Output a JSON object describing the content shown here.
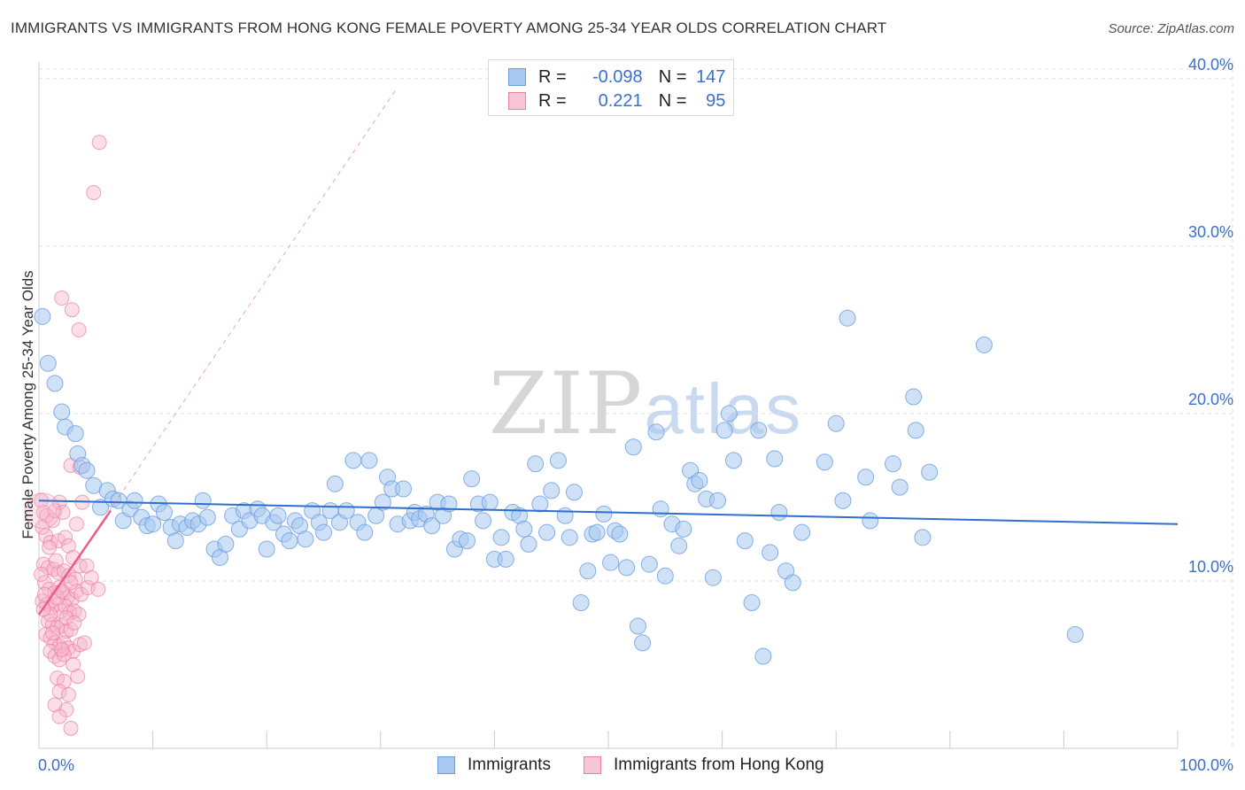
{
  "title": "IMMIGRANTS VS IMMIGRANTS FROM HONG KONG FEMALE POVERTY AMONG 25-34 YEAR OLDS CORRELATION CHART",
  "source": "Source: ZipAtlas.com",
  "watermark": {
    "zip": "ZIP",
    "atlas": "atlas"
  },
  "legend_top": [
    {
      "r_label": "R =",
      "r_value": "-0.098",
      "n_label": "N =",
      "n_value": "147"
    },
    {
      "r_label": "R =",
      "r_value": "0.221",
      "n_label": "N =",
      "n_value": "95"
    }
  ],
  "colors": {
    "blue_fill": "#a8c8f0",
    "blue_stroke": "#6a9ee0",
    "blue_line": "#2e6fd0",
    "pink_fill": "#f7b6cb",
    "pink_stroke": "#ec7fa2",
    "pink_line": "#e8608a",
    "axis_text": "#3a6fd0",
    "grid": "#e0e0e0"
  },
  "chart_data": {
    "type": "scatter",
    "title": "IMMIGRANTS VS IMMIGRANTS FROM HONG KONG FEMALE POVERTY AMONG 25-34 YEAR OLDS CORRELATION CHART",
    "xlabel": "",
    "ylabel": "Female Poverty Among 25-34 Year Olds",
    "xlim": [
      0,
      100
    ],
    "ylim": [
      0,
      41
    ],
    "x_tick_labels": [
      "0.0%",
      "100.0%"
    ],
    "y_ticks": [
      10,
      20,
      30,
      40
    ],
    "y_tick_labels": [
      "10.0%",
      "20.0%",
      "30.0%",
      "40.0%"
    ],
    "grid": true,
    "legend_position": "bottom",
    "series": [
      {
        "name": "Immigrants",
        "r": -0.098,
        "n": 147,
        "trend": {
          "x0": 0,
          "y0": 14.8,
          "x1": 100,
          "y1": 13.4
        },
        "points": [
          [
            0.3,
            25.8
          ],
          [
            0.8,
            23.0
          ],
          [
            1.4,
            21.8
          ],
          [
            2.0,
            20.1
          ],
          [
            2.3,
            19.2
          ],
          [
            3.2,
            18.8
          ],
          [
            3.4,
            17.6
          ],
          [
            3.8,
            16.9
          ],
          [
            4.2,
            16.6
          ],
          [
            4.8,
            15.7
          ],
          [
            5.4,
            14.4
          ],
          [
            6.0,
            15.4
          ],
          [
            6.5,
            14.9
          ],
          [
            7.0,
            14.8
          ],
          [
            7.4,
            13.6
          ],
          [
            8.0,
            14.3
          ],
          [
            8.4,
            14.8
          ],
          [
            9.0,
            13.8
          ],
          [
            9.5,
            13.3
          ],
          [
            10.0,
            13.4
          ],
          [
            10.5,
            14.6
          ],
          [
            11.0,
            14.1
          ],
          [
            11.6,
            13.2
          ],
          [
            12.0,
            12.4
          ],
          [
            12.4,
            13.4
          ],
          [
            13.0,
            13.2
          ],
          [
            13.5,
            13.6
          ],
          [
            14.0,
            13.4
          ],
          [
            14.4,
            14.8
          ],
          [
            14.8,
            13.8
          ],
          [
            15.4,
            11.9
          ],
          [
            15.9,
            11.4
          ],
          [
            16.4,
            12.2
          ],
          [
            17.0,
            13.9
          ],
          [
            17.6,
            13.1
          ],
          [
            18.0,
            14.2
          ],
          [
            18.5,
            13.6
          ],
          [
            19.2,
            14.3
          ],
          [
            19.6,
            13.9
          ],
          [
            20.0,
            11.9
          ],
          [
            20.6,
            13.5
          ],
          [
            21.0,
            13.9
          ],
          [
            21.5,
            12.8
          ],
          [
            22.0,
            12.4
          ],
          [
            22.5,
            13.6
          ],
          [
            22.9,
            13.3
          ],
          [
            23.4,
            12.5
          ],
          [
            24.0,
            14.2
          ],
          [
            24.6,
            13.5
          ],
          [
            25.0,
            12.9
          ],
          [
            25.6,
            14.2
          ],
          [
            26.0,
            15.8
          ],
          [
            26.4,
            13.5
          ],
          [
            27.0,
            14.2
          ],
          [
            27.6,
            17.2
          ],
          [
            28.0,
            13.5
          ],
          [
            28.6,
            12.9
          ],
          [
            29.0,
            17.2
          ],
          [
            29.6,
            13.9
          ],
          [
            30.2,
            14.7
          ],
          [
            30.6,
            16.2
          ],
          [
            31.0,
            15.5
          ],
          [
            31.5,
            13.4
          ],
          [
            32.0,
            15.5
          ],
          [
            32.6,
            13.6
          ],
          [
            33.0,
            14.1
          ],
          [
            33.4,
            13.7
          ],
          [
            34.0,
            14.0
          ],
          [
            34.5,
            13.3
          ],
          [
            35.0,
            14.7
          ],
          [
            35.5,
            13.9
          ],
          [
            36.0,
            14.6
          ],
          [
            36.5,
            11.9
          ],
          [
            37.0,
            12.5
          ],
          [
            37.6,
            12.4
          ],
          [
            38.0,
            16.1
          ],
          [
            38.6,
            14.6
          ],
          [
            39.0,
            13.6
          ],
          [
            39.6,
            14.7
          ],
          [
            40.0,
            11.3
          ],
          [
            40.6,
            12.6
          ],
          [
            41.0,
            11.3
          ],
          [
            41.6,
            14.1
          ],
          [
            42.2,
            13.9
          ],
          [
            42.6,
            13.1
          ],
          [
            43.0,
            12.2
          ],
          [
            43.6,
            17.0
          ],
          [
            44.0,
            14.6
          ],
          [
            44.6,
            12.9
          ],
          [
            45.0,
            15.4
          ],
          [
            45.6,
            17.2
          ],
          [
            46.2,
            13.9
          ],
          [
            46.6,
            12.6
          ],
          [
            47.0,
            15.3
          ],
          [
            47.6,
            8.7
          ],
          [
            48.2,
            10.6
          ],
          [
            48.6,
            12.8
          ],
          [
            49.0,
            12.9
          ],
          [
            49.6,
            14.0
          ],
          [
            50.2,
            11.1
          ],
          [
            50.6,
            13.0
          ],
          [
            51.0,
            12.8
          ],
          [
            51.6,
            10.8
          ],
          [
            52.2,
            18.0
          ],
          [
            52.6,
            7.3
          ],
          [
            53.0,
            6.3
          ],
          [
            53.6,
            11.0
          ],
          [
            54.2,
            18.9
          ],
          [
            54.6,
            14.3
          ],
          [
            55.0,
            10.3
          ],
          [
            55.6,
            13.4
          ],
          [
            56.2,
            12.1
          ],
          [
            56.6,
            13.1
          ],
          [
            57.2,
            16.6
          ],
          [
            57.6,
            15.8
          ],
          [
            58.0,
            16.0
          ],
          [
            58.6,
            14.9
          ],
          [
            59.2,
            10.2
          ],
          [
            59.6,
            14.8
          ],
          [
            60.2,
            19.0
          ],
          [
            60.6,
            20.0
          ],
          [
            61.0,
            17.2
          ],
          [
            62.0,
            12.4
          ],
          [
            62.6,
            8.7
          ],
          [
            63.2,
            19.0
          ],
          [
            63.6,
            5.5
          ],
          [
            64.2,
            11.7
          ],
          [
            64.6,
            17.3
          ],
          [
            65.0,
            14.1
          ],
          [
            65.6,
            10.6
          ],
          [
            66.2,
            9.9
          ],
          [
            67.0,
            12.9
          ],
          [
            69.0,
            17.1
          ],
          [
            70.0,
            19.4
          ],
          [
            70.6,
            14.8
          ],
          [
            71.0,
            25.7
          ],
          [
            72.6,
            16.2
          ],
          [
            73.0,
            13.6
          ],
          [
            75.0,
            17.0
          ],
          [
            75.6,
            15.6
          ],
          [
            76.8,
            21.0
          ],
          [
            77.0,
            19.0
          ],
          [
            77.6,
            12.6
          ],
          [
            78.2,
            16.5
          ],
          [
            83.0,
            24.1
          ],
          [
            91.0,
            6.8
          ]
        ]
      },
      {
        "name": "Immigrants from Hong Kong",
        "r": 0.221,
        "n": 95,
        "trend": {
          "x0": 0,
          "y0": 8.0,
          "x1": 6.3,
          "y1": 14.2
        },
        "trend_ext": {
          "x0": 0,
          "y0": 8.0,
          "x1": 31.5,
          "y1": 39.5
        },
        "points": [
          [
            5.3,
            36.2
          ],
          [
            4.8,
            33.2
          ],
          [
            2.0,
            26.9
          ],
          [
            2.9,
            26.2
          ],
          [
            3.5,
            25.0
          ],
          [
            2.8,
            16.9
          ],
          [
            3.6,
            16.8
          ],
          [
            0.2,
            14.8
          ],
          [
            0.4,
            14.1
          ],
          [
            0.7,
            13.9
          ],
          [
            1.2,
            13.6
          ],
          [
            1.4,
            14.2
          ],
          [
            1.8,
            14.7
          ],
          [
            0.3,
            13.2
          ],
          [
            0.6,
            12.7
          ],
          [
            1.0,
            12.3
          ],
          [
            1.7,
            12.4
          ],
          [
            2.3,
            12.6
          ],
          [
            2.6,
            12.1
          ],
          [
            3.0,
            11.4
          ],
          [
            0.4,
            11.0
          ],
          [
            0.8,
            10.8
          ],
          [
            1.3,
            10.7
          ],
          [
            1.7,
            10.5
          ],
          [
            2.2,
            10.6
          ],
          [
            2.6,
            10.3
          ],
          [
            3.2,
            10.1
          ],
          [
            3.6,
            10.9
          ],
          [
            4.2,
            10.9
          ],
          [
            0.5,
            9.9
          ],
          [
            0.9,
            9.5
          ],
          [
            1.4,
            9.3
          ],
          [
            1.8,
            9.6
          ],
          [
            2.2,
            9.3
          ],
          [
            2.5,
            9.0
          ],
          [
            2.9,
            8.9
          ],
          [
            3.3,
            9.4
          ],
          [
            3.7,
            9.2
          ],
          [
            4.3,
            9.6
          ],
          [
            5.2,
            9.5
          ],
          [
            0.3,
            8.8
          ],
          [
            0.7,
            8.6
          ],
          [
            1.1,
            8.4
          ],
          [
            1.5,
            8.6
          ],
          [
            1.9,
            8.2
          ],
          [
            2.3,
            8.5
          ],
          [
            2.7,
            8.1
          ],
          [
            3.1,
            8.2
          ],
          [
            3.5,
            8.0
          ],
          [
            0.8,
            7.6
          ],
          [
            1.2,
            7.4
          ],
          [
            1.6,
            7.2
          ],
          [
            2.0,
            7.3
          ],
          [
            2.4,
            7.0
          ],
          [
            2.8,
            7.1
          ],
          [
            0.6,
            6.8
          ],
          [
            1.0,
            6.6
          ],
          [
            1.4,
            6.3
          ],
          [
            1.8,
            6.1
          ],
          [
            2.2,
            6.3
          ],
          [
            2.6,
            6.0
          ],
          [
            3.0,
            5.8
          ],
          [
            3.6,
            6.2
          ],
          [
            4.0,
            6.3
          ],
          [
            1.0,
            5.8
          ],
          [
            1.4,
            5.5
          ],
          [
            1.8,
            5.3
          ],
          [
            2.2,
            5.6
          ],
          [
            3.0,
            5.0
          ],
          [
            1.6,
            4.2
          ],
          [
            2.2,
            4.0
          ],
          [
            3.4,
            4.3
          ],
          [
            1.8,
            3.4
          ],
          [
            2.6,
            3.2
          ],
          [
            1.4,
            2.6
          ],
          [
            2.4,
            2.3
          ],
          [
            1.8,
            1.9
          ],
          [
            2.8,
            1.2
          ],
          [
            0.5,
            9.2
          ],
          [
            1.0,
            8.0
          ],
          [
            1.6,
            9.0
          ],
          [
            2.0,
            9.4
          ],
          [
            2.4,
            7.8
          ],
          [
            2.8,
            9.9
          ],
          [
            0.2,
            10.4
          ],
          [
            0.9,
            12.0
          ],
          [
            1.5,
            11.2
          ],
          [
            3.3,
            13.4
          ],
          [
            3.8,
            14.7
          ],
          [
            2.1,
            14.1
          ],
          [
            4.6,
            10.2
          ],
          [
            1.2,
            6.9
          ],
          [
            0.4,
            8.3
          ],
          [
            2.0,
            5.9
          ],
          [
            3.1,
            7.5
          ]
        ]
      }
    ]
  },
  "bottom_legend": [
    "Immigrants",
    "Immigrants from Hong Kong"
  ]
}
